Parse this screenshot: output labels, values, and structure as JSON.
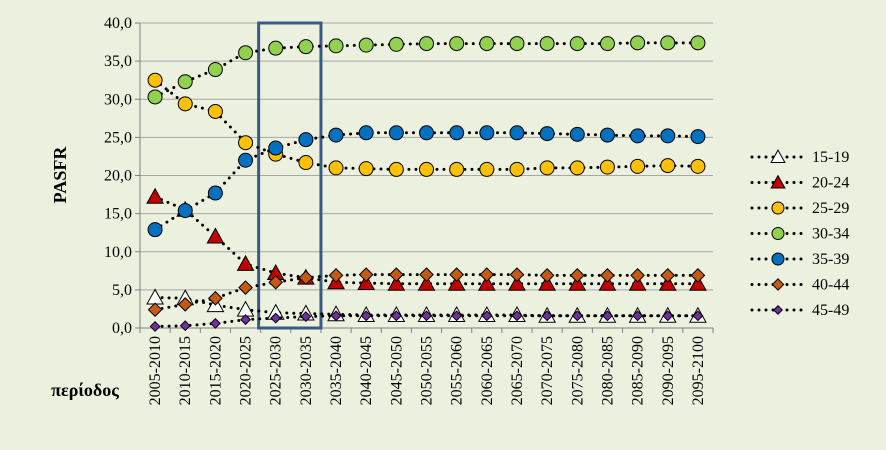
{
  "chart_data": {
    "type": "line",
    "ylabel": "PASFR",
    "xlabel": "περίοδος",
    "ylim": [
      0,
      40
    ],
    "yticks": [
      "0,0",
      "5,0",
      "10,0",
      "15,0",
      "20,0",
      "25,0",
      "30,0",
      "35,0",
      "40,0"
    ],
    "categories": [
      "2005-2010",
      "2010-2015",
      "2015-2020",
      "2020-2025",
      "2025-2030",
      "2030-2035",
      "2035-2040",
      "2040-2045",
      "2045-2050",
      "2050-2055",
      "2055-2060",
      "2060-2065",
      "2065-2070",
      "2070-2075",
      "2075-2080",
      "2080-2085",
      "2085-2090",
      "2090-2095",
      "2095-2100"
    ],
    "highlight_categories": [
      "2025-2030",
      "2030-2035"
    ],
    "highlight_color": "#3a5a85",
    "legend_position": "right",
    "series": [
      {
        "name": "15-19",
        "marker": "triangle",
        "color": "#ffffff",
        "values": [
          4.0,
          3.9,
          3.0,
          2.4,
          2.0,
          1.9,
          1.8,
          1.7,
          1.7,
          1.7,
          1.7,
          1.7,
          1.7,
          1.6,
          1.6,
          1.6,
          1.6,
          1.6,
          1.6
        ]
      },
      {
        "name": "20-24",
        "marker": "triangle",
        "color": "#c00000",
        "values": [
          17.2,
          15.5,
          12.0,
          8.4,
          7.2,
          6.6,
          6.0,
          5.9,
          5.8,
          5.8,
          5.8,
          5.8,
          5.8,
          5.8,
          5.8,
          5.8,
          5.8,
          5.8,
          5.8
        ]
      },
      {
        "name": "25-29",
        "marker": "circle",
        "color": "#ffc000",
        "values": [
          32.5,
          29.4,
          28.4,
          24.3,
          22.8,
          21.7,
          21.0,
          20.9,
          20.8,
          20.8,
          20.8,
          20.8,
          20.8,
          21.0,
          21.0,
          21.1,
          21.2,
          21.3,
          21.2
        ]
      },
      {
        "name": "30-34",
        "marker": "circle",
        "color": "#92d050",
        "values": [
          30.3,
          32.3,
          33.9,
          36.1,
          36.7,
          36.9,
          37.0,
          37.1,
          37.2,
          37.3,
          37.3,
          37.3,
          37.3,
          37.3,
          37.3,
          37.3,
          37.4,
          37.4,
          37.4
        ]
      },
      {
        "name": "35-39",
        "marker": "circle",
        "color": "#0070c0",
        "values": [
          12.9,
          15.4,
          17.7,
          22.0,
          23.6,
          24.7,
          25.3,
          25.6,
          25.6,
          25.6,
          25.6,
          25.6,
          25.6,
          25.5,
          25.4,
          25.3,
          25.2,
          25.2,
          25.1
        ]
      },
      {
        "name": "40-44",
        "marker": "diamond",
        "color": "#c55a11",
        "values": [
          2.4,
          3.1,
          3.9,
          5.3,
          6.0,
          6.6,
          6.9,
          7.0,
          7.0,
          7.0,
          7.0,
          7.0,
          7.0,
          6.9,
          6.9,
          6.9,
          6.9,
          6.9,
          6.9
        ]
      },
      {
        "name": "45-49",
        "marker": "diamond",
        "color": "#7030a0",
        "values": [
          0.2,
          0.3,
          0.6,
          1.1,
          1.3,
          1.5,
          1.6,
          1.6,
          1.6,
          1.6,
          1.6,
          1.6,
          1.6,
          1.6,
          1.6,
          1.6,
          1.6,
          1.6,
          1.6
        ]
      }
    ]
  }
}
